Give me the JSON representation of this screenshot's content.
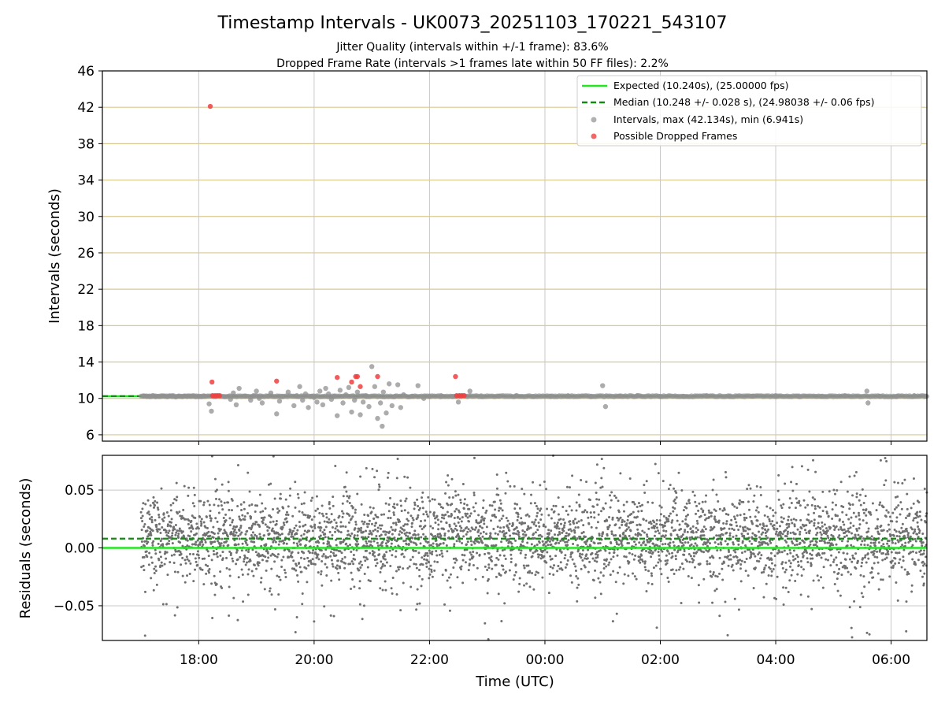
{
  "chart_data": [
    {
      "panel": "top",
      "type": "scatter",
      "title": "Timestamp Intervals - UK0073_20251103_170221_543107",
      "subtitles": [
        "Jitter Quality (intervals within +/-1 frame): 83.6%",
        "Dropped Frame Rate (intervals >1 frames late within 50 FF files): 2.2%"
      ],
      "ylabel": "Intervals (seconds)",
      "xlabel": "",
      "ylim": [
        5.3,
        46
      ],
      "xlim_hours": [
        16.33,
        30.62
      ],
      "yticks": [
        6,
        10,
        14,
        18,
        22,
        26,
        30,
        34,
        38,
        42,
        46
      ],
      "xticks": [
        18,
        20,
        22,
        24,
        26,
        28,
        30
      ],
      "xticklabels": [
        "18:00",
        "20:00",
        "22:00",
        "00:00",
        "02:00",
        "04:00",
        "06:00"
      ],
      "grid": true,
      "legend_position": "top-right",
      "legend": [
        "Expected (10.240s), (25.00000 fps)",
        "Median (10.248 +/- 0.028 s), (24.98038 +/- 0.06 fps)",
        "Intervals, max (42.134s), min (6.941s)",
        "Possible Dropped Frames"
      ],
      "expected_value": 10.24,
      "median_value": 10.248,
      "series": [
        {
          "name": "Intervals, max (42.134s), min (6.941s)",
          "color": "#909090",
          "points": [
            [
              17.05,
              10.24
            ],
            [
              17.1,
              10.2
            ],
            [
              17.15,
              10.26
            ],
            [
              17.2,
              10.3
            ],
            [
              17.25,
              10.18
            ],
            [
              17.3,
              10.24
            ],
            [
              17.35,
              10.22
            ],
            [
              17.4,
              10.27
            ],
            [
              17.45,
              10.2
            ],
            [
              17.5,
              10.24
            ],
            [
              17.55,
              10.31
            ],
            [
              17.6,
              10.17
            ],
            [
              17.65,
              10.24
            ],
            [
              17.7,
              10.22
            ],
            [
              17.75,
              10.26
            ],
            [
              17.8,
              10.2
            ],
            [
              17.85,
              10.24
            ],
            [
              17.9,
              10.28
            ],
            [
              17.95,
              10.19
            ],
            [
              18.0,
              10.24
            ],
            [
              18.05,
              10.23
            ],
            [
              18.1,
              10.26
            ],
            [
              18.18,
              9.4
            ],
            [
              18.22,
              8.6
            ],
            [
              18.3,
              10.24
            ],
            [
              18.45,
              10.2
            ],
            [
              18.55,
              9.9
            ],
            [
              18.6,
              10.6
            ],
            [
              18.65,
              9.3
            ],
            [
              18.7,
              11.1
            ],
            [
              18.8,
              10.24
            ],
            [
              18.9,
              9.8
            ],
            [
              18.95,
              10.3
            ],
            [
              19.0,
              10.8
            ],
            [
              19.05,
              10.0
            ],
            [
              19.1,
              9.5
            ],
            [
              19.2,
              10.24
            ],
            [
              19.25,
              10.6
            ],
            [
              19.35,
              8.3
            ],
            [
              19.4,
              9.7
            ],
            [
              19.45,
              10.24
            ],
            [
              19.55,
              10.7
            ],
            [
              19.65,
              9.2
            ],
            [
              19.7,
              10.3
            ],
            [
              19.75,
              11.3
            ],
            [
              19.8,
              9.8
            ],
            [
              19.85,
              10.5
            ],
            [
              19.9,
              9.0
            ],
            [
              19.95,
              10.24
            ],
            [
              20.0,
              10.1
            ],
            [
              20.05,
              9.6
            ],
            [
              20.1,
              10.8
            ],
            [
              20.15,
              9.3
            ],
            [
              20.2,
              11.1
            ],
            [
              20.25,
              10.5
            ],
            [
              20.3,
              9.9
            ],
            [
              20.35,
              10.24
            ],
            [
              20.4,
              8.1
            ],
            [
              20.45,
              10.9
            ],
            [
              20.5,
              9.5
            ],
            [
              20.55,
              10.4
            ],
            [
              20.6,
              11.2
            ],
            [
              20.65,
              8.5
            ],
            [
              20.7,
              9.8
            ],
            [
              20.75,
              10.7
            ],
            [
              20.8,
              8.2
            ],
            [
              20.85,
              9.6
            ],
            [
              20.9,
              10.3
            ],
            [
              20.95,
              9.1
            ],
            [
              21.0,
              13.5
            ],
            [
              21.05,
              11.3
            ],
            [
              21.1,
              7.8
            ],
            [
              21.15,
              9.5
            ],
            [
              21.18,
              6.94
            ],
            [
              21.2,
              10.7
            ],
            [
              21.25,
              8.4
            ],
            [
              21.3,
              11.6
            ],
            [
              21.35,
              9.2
            ],
            [
              21.4,
              10.24
            ],
            [
              21.45,
              11.5
            ],
            [
              21.5,
              9.0
            ],
            [
              21.55,
              10.4
            ],
            [
              21.7,
              10.24
            ],
            [
              21.8,
              11.4
            ],
            [
              21.9,
              10.0
            ],
            [
              22.0,
              10.24
            ],
            [
              22.2,
              10.3
            ],
            [
              22.4,
              10.2
            ],
            [
              22.5,
              9.6
            ],
            [
              22.7,
              10.8
            ],
            [
              22.9,
              10.2
            ],
            [
              23.2,
              10.24
            ],
            [
              23.5,
              10.3
            ],
            [
              23.8,
              10.2
            ],
            [
              24.1,
              10.24
            ],
            [
              24.4,
              10.3
            ],
            [
              24.8,
              10.24
            ],
            [
              25.0,
              11.4
            ],
            [
              25.05,
              9.1
            ],
            [
              25.3,
              10.24
            ],
            [
              25.6,
              10.3
            ],
            [
              26.0,
              10.2
            ],
            [
              26.4,
              10.24
            ],
            [
              26.8,
              10.3
            ],
            [
              27.2,
              10.2
            ],
            [
              27.6,
              10.24
            ],
            [
              28.0,
              10.3
            ],
            [
              28.4,
              10.2
            ],
            [
              28.8,
              10.24
            ],
            [
              29.2,
              10.3
            ],
            [
              29.58,
              10.8
            ],
            [
              29.6,
              9.5
            ],
            [
              29.8,
              10.24
            ],
            [
              30.1,
              10.2
            ],
            [
              30.4,
              10.3
            ],
            [
              30.6,
              10.24
            ]
          ]
        },
        {
          "name": "Possible Dropped Frames",
          "color": "#f04040",
          "points": [
            [
              18.2,
              42.1
            ],
            [
              18.23,
              11.8
            ],
            [
              18.24,
              10.3
            ],
            [
              18.28,
              10.3
            ],
            [
              18.32,
              10.3
            ],
            [
              18.36,
              10.3
            ],
            [
              19.35,
              11.9
            ],
            [
              20.4,
              12.3
            ],
            [
              20.65,
              11.8
            ],
            [
              20.72,
              12.4
            ],
            [
              20.75,
              12.4
            ],
            [
              20.8,
              11.3
            ],
            [
              21.1,
              12.4
            ],
            [
              22.45,
              12.4
            ],
            [
              22.47,
              10.3
            ],
            [
              22.52,
              10.3
            ],
            [
              22.56,
              10.3
            ],
            [
              22.6,
              10.3
            ]
          ]
        }
      ]
    },
    {
      "panel": "bottom",
      "type": "scatter",
      "title": "",
      "ylabel": "Residuals (seconds)",
      "xlabel": "Time (UTC)",
      "ylim": [
        -0.08,
        0.08
      ],
      "xlim_hours": [
        16.33,
        30.62
      ],
      "yticks": [
        0.05,
        0.0,
        -0.05
      ],
      "yticklabels": [
        "0.05",
        "0.00",
        "−0.05"
      ],
      "xticks": [
        18,
        20,
        22,
        24,
        26,
        28,
        30
      ],
      "xticklabels": [
        "18:00",
        "20:00",
        "22:00",
        "00:00",
        "02:00",
        "04:00",
        "06:00"
      ],
      "grid": true,
      "expected_residual": 0.0,
      "median_residual": 0.008,
      "data_x_range_hours": [
        17.0,
        30.62
      ],
      "residual_spread_seconds": 0.06,
      "series_color": "#707070"
    }
  ]
}
